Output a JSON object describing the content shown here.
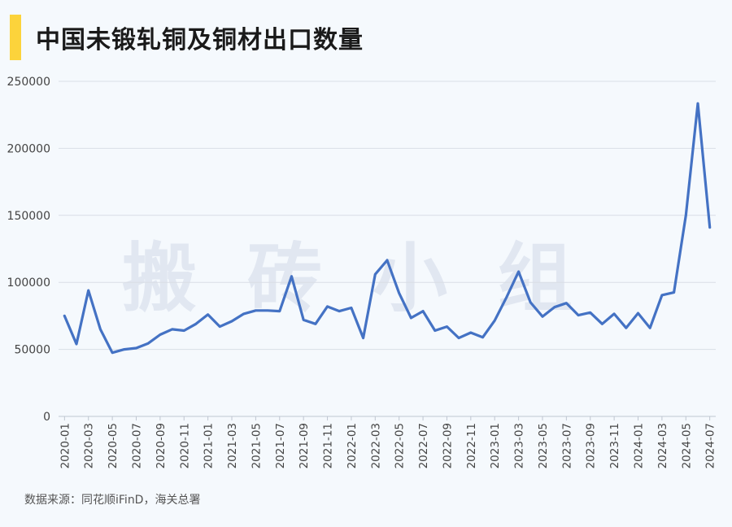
{
  "title": "中国未锻轧铜及铜材出口数量",
  "watermark": "搬砖小组",
  "source": "数据来源：同花顺iFinD，海关总署",
  "colors": {
    "accent_bar": "#fcd33b",
    "line": "#4472c4",
    "grid": "#d9dee6",
    "background": "#f5f9fd"
  },
  "chart_data": {
    "type": "line",
    "ylim": [
      0,
      250000
    ],
    "yticks": [
      0,
      50000,
      100000,
      150000,
      200000,
      250000
    ],
    "grid": true,
    "x": [
      "2020-01",
      "2020-02",
      "2020-03",
      "2020-04",
      "2020-05",
      "2020-06",
      "2020-07",
      "2020-08",
      "2020-09",
      "2020-10",
      "2020-11",
      "2020-12",
      "2021-01",
      "2021-02",
      "2021-03",
      "2021-04",
      "2021-05",
      "2021-06",
      "2021-07",
      "2021-08",
      "2021-09",
      "2021-10",
      "2021-11",
      "2021-12",
      "2022-01",
      "2022-02",
      "2022-03",
      "2022-04",
      "2022-05",
      "2022-06",
      "2022-07",
      "2022-08",
      "2022-09",
      "2022-10",
      "2022-11",
      "2022-12",
      "2023-01",
      "2023-02",
      "2023-03",
      "2023-04",
      "2023-05",
      "2023-06",
      "2023-07",
      "2023-08",
      "2023-09",
      "2023-10",
      "2023-11",
      "2023-12",
      "2024-01",
      "2024-02",
      "2024-03",
      "2024-04",
      "2024-05",
      "2024-06",
      "2024-07"
    ],
    "xtick_labels": [
      "2020-01",
      "2020-03",
      "2020-05",
      "2020-07",
      "2020-09",
      "2020-11",
      "2021-01",
      "2021-03",
      "2021-05",
      "2021-07",
      "2021-09",
      "2021-11",
      "2022-01",
      "2022-03",
      "2022-05",
      "2022-07",
      "2022-09",
      "2022-11",
      "2023-01",
      "2023-03",
      "2023-05",
      "2023-07",
      "2023-09",
      "2023-11",
      "2024-01",
      "2024-03",
      "2024-05",
      "2024-07"
    ],
    "values": [
      75000,
      54000,
      94000,
      65000,
      47500,
      50000,
      51000,
      54500,
      61000,
      65000,
      64000,
      69000,
      76000,
      67000,
      71000,
      76500,
      79000,
      79000,
      78500,
      104500,
      72000,
      69000,
      82000,
      78500,
      81000,
      58500,
      106000,
      116500,
      92000,
      73500,
      78500,
      64000,
      67000,
      58500,
      62500,
      59000,
      71500,
      89000,
      108000,
      85000,
      74500,
      81500,
      84500,
      75500,
      77500,
      69000,
      76500,
      66000,
      77000,
      66000,
      90500,
      92500,
      150000,
      233500,
      141000
    ]
  }
}
